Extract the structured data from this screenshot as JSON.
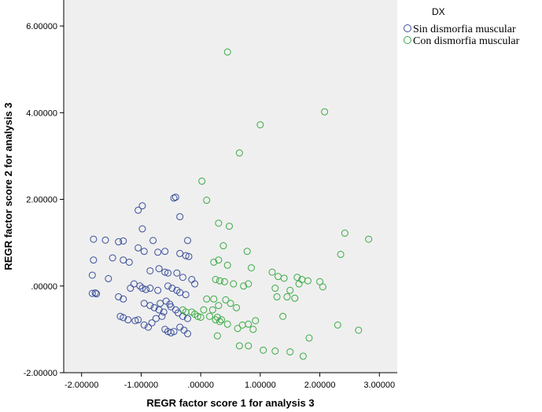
{
  "chart_data": {
    "type": "scatter",
    "title": "",
    "xlabel": "REGR factor score   1 for analysis 3",
    "ylabel": "REGR factor score   2 for analysis 3",
    "xlim": [
      -2.3,
      3.3
    ],
    "ylim": [
      -2.0,
      6.6
    ],
    "x_ticks": [
      -2,
      -1,
      0,
      1,
      2,
      3
    ],
    "x_tick_labels": [
      "-2.00000",
      "-1.00000",
      ".00000",
      "1.00000",
      "2.00000",
      "3.00000"
    ],
    "y_ticks": [
      -2,
      0,
      2,
      4,
      6
    ],
    "y_tick_labels": [
      "-2.00000",
      ".00000",
      "2.00000",
      "4.00000",
      "6.00000"
    ],
    "grid": false,
    "legend_title": "DX",
    "legend_position": "top-right",
    "series": [
      {
        "name": "Sin dismorfia muscular",
        "color": "#3a4f9b",
        "marker": "open-circle",
        "points": [
          [
            -1.8,
            1.08
          ],
          [
            -1.6,
            1.06
          ],
          [
            -1.38,
            1.02
          ],
          [
            -1.3,
            1.04
          ],
          [
            -1.8,
            0.6
          ],
          [
            -1.48,
            0.65
          ],
          [
            -1.3,
            0.6
          ],
          [
            -1.2,
            0.55
          ],
          [
            -1.82,
            0.25
          ],
          [
            -1.55,
            0.17
          ],
          [
            -1.77,
            -0.16
          ],
          [
            -1.82,
            -0.17
          ],
          [
            -1.75,
            -0.18
          ],
          [
            -1.38,
            -0.25
          ],
          [
            -1.3,
            -0.3
          ],
          [
            -1.18,
            -0.05
          ],
          [
            -1.12,
            0.05
          ],
          [
            -1.02,
            0.0
          ],
          [
            -0.98,
            -0.05
          ],
          [
            -0.92,
            -0.08
          ],
          [
            -1.05,
            1.75
          ],
          [
            -0.98,
            1.85
          ],
          [
            -0.45,
            2.03
          ],
          [
            -0.42,
            2.05
          ],
          [
            -0.35,
            1.6
          ],
          [
            -0.98,
            1.32
          ],
          [
            -0.22,
            1.05
          ],
          [
            -0.8,
            1.05
          ],
          [
            -0.95,
            0.8
          ],
          [
            -1.05,
            0.88
          ],
          [
            -0.72,
            0.78
          ],
          [
            -0.6,
            0.8
          ],
          [
            -0.35,
            0.75
          ],
          [
            -0.25,
            0.7
          ],
          [
            -0.2,
            0.68
          ],
          [
            -0.85,
            0.35
          ],
          [
            -0.7,
            0.4
          ],
          [
            -0.6,
            0.32
          ],
          [
            -0.55,
            0.3
          ],
          [
            -0.4,
            0.3
          ],
          [
            -0.3,
            0.2
          ],
          [
            -0.15,
            0.15
          ],
          [
            -0.1,
            0.05
          ],
          [
            -0.85,
            -0.05
          ],
          [
            -0.72,
            -0.1
          ],
          [
            -0.55,
            0.0
          ],
          [
            -0.48,
            -0.05
          ],
          [
            -0.4,
            -0.1
          ],
          [
            -0.35,
            -0.15
          ],
          [
            -0.25,
            -0.2
          ],
          [
            -0.95,
            -0.4
          ],
          [
            -0.85,
            -0.45
          ],
          [
            -0.78,
            -0.5
          ],
          [
            -0.7,
            -0.55
          ],
          [
            -0.62,
            -0.6
          ],
          [
            -0.5,
            -0.48
          ],
          [
            -0.42,
            -0.55
          ],
          [
            -0.38,
            -0.62
          ],
          [
            -0.3,
            -0.7
          ],
          [
            -0.22,
            -0.75
          ],
          [
            -1.35,
            -0.7
          ],
          [
            -1.3,
            -0.73
          ],
          [
            -1.22,
            -0.78
          ],
          [
            -1.1,
            -0.8
          ],
          [
            -1.05,
            -0.78
          ],
          [
            -0.95,
            -0.9
          ],
          [
            -0.88,
            -0.95
          ],
          [
            -0.82,
            -0.85
          ],
          [
            -0.75,
            -0.75
          ],
          [
            -0.65,
            -0.7
          ],
          [
            -0.6,
            -1.0
          ],
          [
            -0.55,
            -1.05
          ],
          [
            -0.5,
            -1.08
          ],
          [
            -0.45,
            -1.05
          ],
          [
            -0.35,
            -0.95
          ],
          [
            -0.28,
            -1.02
          ],
          [
            -0.22,
            -1.1
          ],
          [
            -0.68,
            -0.4
          ],
          [
            -0.58,
            -0.35
          ],
          [
            -0.52,
            -0.42
          ]
        ]
      },
      {
        "name": "Con dismorfia muscular",
        "color": "#3aaa44",
        "marker": "open-circle",
        "points": [
          [
            0.45,
            5.4
          ],
          [
            2.08,
            4.02
          ],
          [
            1.0,
            3.72
          ],
          [
            0.65,
            3.07
          ],
          [
            0.02,
            2.42
          ],
          [
            0.1,
            1.98
          ],
          [
            0.3,
            1.45
          ],
          [
            0.48,
            1.38
          ],
          [
            2.42,
            1.22
          ],
          [
            2.82,
            1.08
          ],
          [
            0.38,
            0.93
          ],
          [
            0.78,
            0.8
          ],
          [
            2.35,
            0.73
          ],
          [
            0.3,
            0.6
          ],
          [
            0.22,
            0.55
          ],
          [
            0.45,
            0.48
          ],
          [
            0.85,
            0.42
          ],
          [
            1.2,
            0.32
          ],
          [
            0.25,
            0.15
          ],
          [
            0.32,
            0.12
          ],
          [
            0.4,
            0.1
          ],
          [
            0.55,
            0.05
          ],
          [
            0.72,
            0.0
          ],
          [
            0.8,
            0.05
          ],
          [
            1.3,
            0.22
          ],
          [
            1.4,
            0.18
          ],
          [
            1.62,
            0.2
          ],
          [
            1.7,
            0.15
          ],
          [
            1.8,
            0.12
          ],
          [
            2.0,
            0.1
          ],
          [
            1.25,
            -0.05
          ],
          [
            1.5,
            -0.1
          ],
          [
            1.65,
            0.05
          ],
          [
            2.05,
            -0.02
          ],
          [
            1.28,
            -0.25
          ],
          [
            1.45,
            -0.25
          ],
          [
            1.58,
            -0.28
          ],
          [
            0.22,
            -0.3
          ],
          [
            0.42,
            -0.32
          ],
          [
            0.5,
            -0.4
          ],
          [
            0.6,
            -0.5
          ],
          [
            0.1,
            -0.3
          ],
          [
            0.3,
            -0.45
          ],
          [
            0.05,
            -0.55
          ],
          [
            0.15,
            -0.7
          ],
          [
            0.25,
            -0.78
          ],
          [
            0.32,
            -0.82
          ],
          [
            0.45,
            -0.88
          ],
          [
            0.7,
            -0.9
          ],
          [
            0.8,
            -0.88
          ],
          [
            0.92,
            -0.8
          ],
          [
            1.38,
            -0.7
          ],
          [
            0.62,
            -0.98
          ],
          [
            0.88,
            -1.0
          ],
          [
            -0.05,
            -0.7
          ],
          [
            0.0,
            -0.72
          ],
          [
            -0.15,
            -0.6
          ],
          [
            -0.1,
            -0.65
          ],
          [
            0.2,
            -0.55
          ],
          [
            0.28,
            -1.15
          ],
          [
            0.65,
            -1.38
          ],
          [
            0.8,
            -1.38
          ],
          [
            1.05,
            -1.48
          ],
          [
            1.25,
            -1.5
          ],
          [
            1.5,
            -1.52
          ],
          [
            1.72,
            -1.62
          ],
          [
            1.82,
            -1.2
          ],
          [
            2.3,
            -0.9
          ],
          [
            2.65,
            -1.02
          ],
          [
            0.35,
            -0.78
          ],
          [
            -0.3,
            -0.55
          ],
          [
            -0.25,
            -0.6
          ],
          [
            0.28,
            -0.72
          ]
        ]
      }
    ]
  }
}
